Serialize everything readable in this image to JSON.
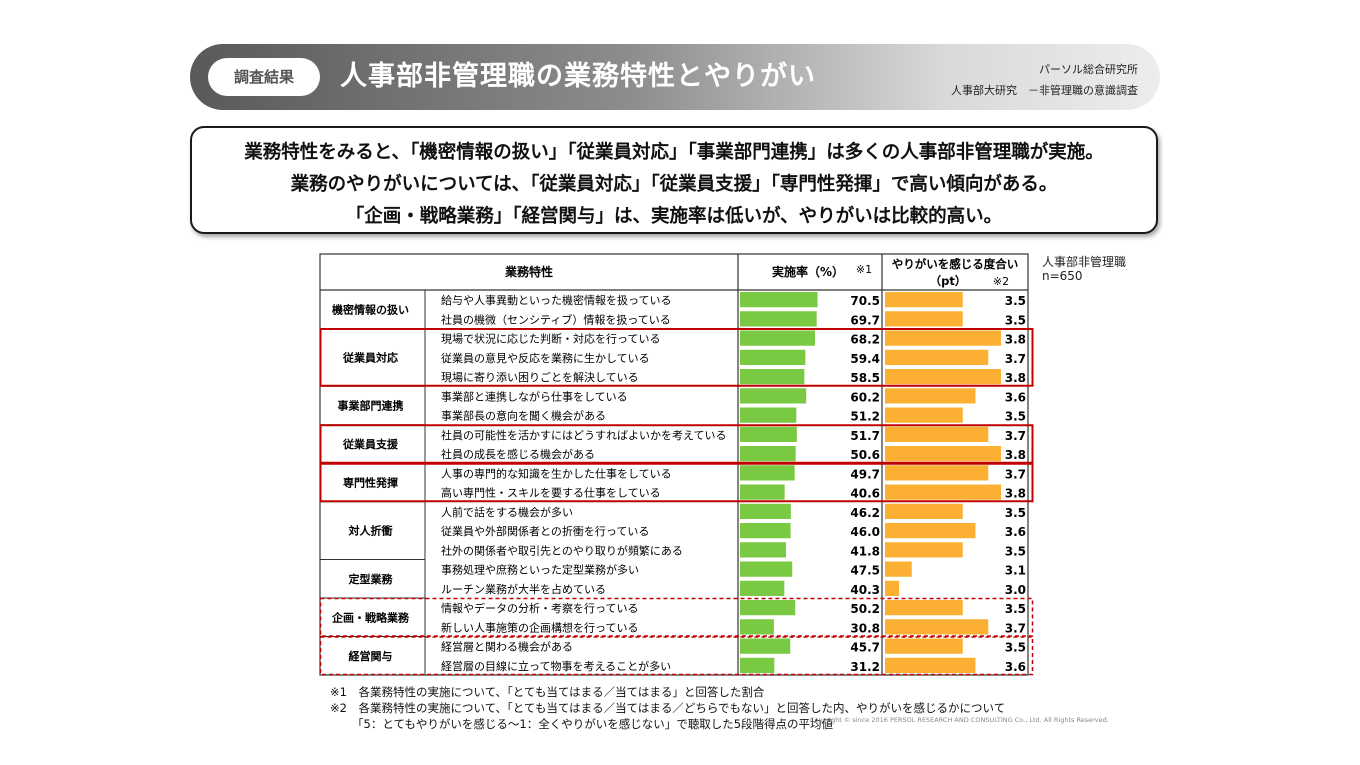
{
  "header": {
    "badge": "調査結果",
    "title": "人事部非管理職の業務特性とやりがい",
    "org": "パーソル総合研究所",
    "survey": "人事部大研究　－非管理職の意識調査"
  },
  "summary": {
    "line1": "業務特性をみると、「機密情報の扱い」「従業員対応」「事業部門連携」は多くの人事部非管理職が実施。",
    "line2": "業務のやりがいについては、「従業員対応」「従業員支援」「専門性発揮」で高い傾向がある。",
    "line3": "「企画・戦略業務」「経営関与」は、実施率は低いが、やりがいは比較的高い。"
  },
  "respondents": {
    "line1": "人事部非管理職",
    "line2": "n=650"
  },
  "footnotes": {
    "note1": "※1　各業務特性の実施について、「とても当てはまる／当てはまる」と回答した割合",
    "note2": "※2　各業務特性の実施について、「とても当てはまる／当てはまる／どちらでもない」と回答した内、やりがいを感じるかについて",
    "note3": "「5：とてもやりがいを感じる～1：全くやりがいを感じない」で聴取した5段階得点の平均値",
    "copyright": "Copyright © since 2016 PERSOL RESEARCH AND CONSULTING Co., Ltd. All Rights Reserved."
  },
  "colors": {
    "rate_bar": "#7ac943",
    "score_bar": "#fbb034",
    "highlight": "#c00000",
    "grid": "#333333"
  },
  "chart_data": {
    "type": "table",
    "headers": {
      "category": "業務特性",
      "rate": "実施率（%）",
      "rate_note": "※1",
      "score_line1": "やりがいを感じる度合い",
      "score_line2": "（pt）",
      "score_note": "※2"
    },
    "rate_range": [
      0,
      100
    ],
    "score_range": [
      3,
      3.8
    ],
    "groups": [
      {
        "name": "機密情報の扱い",
        "highlight": "none",
        "items": [
          {
            "label": "給与や人事異動といった機密情報を扱っている",
            "rate": 70.5,
            "score": 3.5
          },
          {
            "label": "社員の機微（センシティブ）情報を扱っている",
            "rate": 69.7,
            "score": 3.5
          }
        ]
      },
      {
        "name": "従業員対応",
        "highlight": "solid",
        "items": [
          {
            "label": "現場で状況に応じた判断・対応を行っている",
            "rate": 68.2,
            "score": 3.8
          },
          {
            "label": "従業員の意見や反応を業務に生かしている",
            "rate": 59.4,
            "score": 3.7
          },
          {
            "label": "現場に寄り添い困りごとを解決している",
            "rate": 58.5,
            "score": 3.8
          }
        ]
      },
      {
        "name": "事業部門連携",
        "highlight": "none",
        "items": [
          {
            "label": "事業部と連携しながら仕事をしている",
            "rate": 60.2,
            "score": 3.6
          },
          {
            "label": "事業部長の意向を聞く機会がある",
            "rate": 51.2,
            "score": 3.5
          }
        ]
      },
      {
        "name": "従業員支援",
        "highlight": "solid",
        "items": [
          {
            "label": "社員の可能性を活かすにはどうすればよいかを考えている",
            "rate": 51.7,
            "score": 3.7
          },
          {
            "label": "社員の成長を感じる機会がある",
            "rate": 50.6,
            "score": 3.8
          }
        ]
      },
      {
        "name": "専門性発揮",
        "highlight": "solid",
        "items": [
          {
            "label": "人事の専門的な知識を生かした仕事をしている",
            "rate": 49.7,
            "score": 3.7
          },
          {
            "label": "高い専門性・スキルを要する仕事をしている",
            "rate": 40.6,
            "score": 3.8
          }
        ]
      },
      {
        "name": "対人折衝",
        "highlight": "none",
        "items": [
          {
            "label": "人前で話をする機会が多い",
            "rate": 46.2,
            "score": 3.5
          },
          {
            "label": "従業員や外部関係者との折衝を行っている",
            "rate": 46.0,
            "score": 3.6
          },
          {
            "label": "社外の関係者や取引先とのやり取りが頻繁にある",
            "rate": 41.8,
            "score": 3.5
          }
        ]
      },
      {
        "name": "定型業務",
        "highlight": "none",
        "items": [
          {
            "label": "事務処理や庶務といった定型業務が多い",
            "rate": 47.5,
            "score": 3.1
          },
          {
            "label": "ルーチン業務が大半を占めている",
            "rate": 40.3,
            "score": 3.0
          }
        ]
      },
      {
        "name": "企画・戦略業務",
        "highlight": "dashed",
        "items": [
          {
            "label": "情報やデータの分析・考察を行っている",
            "rate": 50.2,
            "score": 3.5
          },
          {
            "label": "新しい人事施策の企画構想を行っている",
            "rate": 30.8,
            "score": 3.7
          }
        ]
      },
      {
        "name": "経営関与",
        "highlight": "dashed",
        "items": [
          {
            "label": "経営層と関わる機会がある",
            "rate": 45.7,
            "score": 3.5
          },
          {
            "label": "経営層の目線に立って物事を考えることが多い",
            "rate": 31.2,
            "score": 3.6
          }
        ]
      }
    ]
  }
}
